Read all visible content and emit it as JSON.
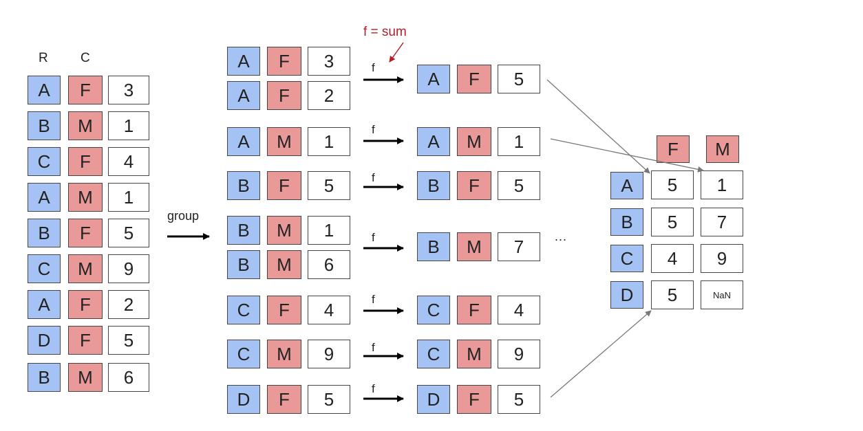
{
  "source": {
    "headers": {
      "row_key": "R",
      "col_key": "C"
    },
    "rows": [
      {
        "r": "A",
        "c": "F",
        "v": "3"
      },
      {
        "r": "B",
        "c": "M",
        "v": "1"
      },
      {
        "r": "C",
        "c": "F",
        "v": "4"
      },
      {
        "r": "A",
        "c": "M",
        "v": "1"
      },
      {
        "r": "B",
        "c": "F",
        "v": "5"
      },
      {
        "r": "C",
        "c": "M",
        "v": "9"
      },
      {
        "r": "A",
        "c": "F",
        "v": "2"
      },
      {
        "r": "D",
        "c": "F",
        "v": "5"
      },
      {
        "r": "B",
        "c": "M",
        "v": "6"
      }
    ]
  },
  "group_label": "group",
  "groups": [
    {
      "rows": [
        {
          "r": "A",
          "c": "F",
          "v": "3"
        },
        {
          "r": "A",
          "c": "F",
          "v": "2"
        }
      ],
      "result": {
        "r": "A",
        "c": "F",
        "v": "5"
      }
    },
    {
      "rows": [
        {
          "r": "A",
          "c": "M",
          "v": "1"
        }
      ],
      "result": {
        "r": "A",
        "c": "M",
        "v": "1"
      }
    },
    {
      "rows": [
        {
          "r": "B",
          "c": "F",
          "v": "5"
        }
      ],
      "result": {
        "r": "B",
        "c": "F",
        "v": "5"
      }
    },
    {
      "rows": [
        {
          "r": "B",
          "c": "M",
          "v": "1"
        },
        {
          "r": "B",
          "c": "M",
          "v": "6"
        }
      ],
      "result": {
        "r": "B",
        "c": "M",
        "v": "7"
      }
    },
    {
      "rows": [
        {
          "r": "C",
          "c": "F",
          "v": "4"
        }
      ],
      "result": {
        "r": "C",
        "c": "F",
        "v": "4"
      }
    },
    {
      "rows": [
        {
          "r": "C",
          "c": "M",
          "v": "9"
        }
      ],
      "result": {
        "r": "C",
        "c": "M",
        "v": "9"
      }
    },
    {
      "rows": [
        {
          "r": "D",
          "c": "F",
          "v": "5"
        }
      ],
      "result": {
        "r": "D",
        "c": "F",
        "v": "5"
      }
    }
  ],
  "f_label": "f",
  "annotation": "f = sum",
  "ellipsis": "...",
  "pivot": {
    "col_headers": [
      "F",
      "M"
    ],
    "row_headers": [
      "A",
      "B",
      "C",
      "D"
    ],
    "values": [
      [
        "5",
        "1"
      ],
      [
        "5",
        "7"
      ],
      [
        "4",
        "9"
      ],
      [
        "5",
        "NaN"
      ]
    ]
  },
  "colors": {
    "row_key": "#a4c2f4",
    "col_key": "#ea9999",
    "value": "#ffffff",
    "annotation": "#b3202a"
  }
}
